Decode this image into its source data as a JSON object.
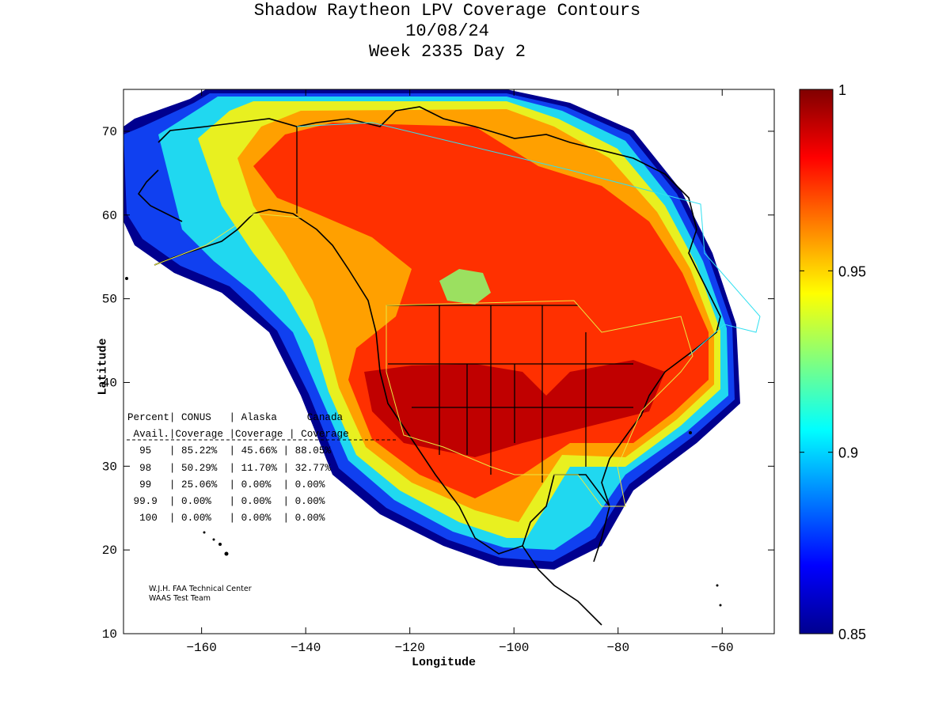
{
  "title": {
    "line1": "Shadow Raytheon LPV Coverage Contours",
    "line2": "10/08/24",
    "line3": "Week 2335 Day 2"
  },
  "axes": {
    "xlabel": "Longitude",
    "ylabel": "Latitude",
    "xlim": [
      -175,
      -50
    ],
    "ylim": [
      10,
      75
    ],
    "xticks": [
      -160,
      -140,
      -120,
      -100,
      -80,
      -60
    ],
    "yticks": [
      10,
      20,
      30,
      40,
      50,
      60,
      70
    ]
  },
  "colorbar": {
    "min": 0.85,
    "max": 1,
    "ticks": [
      "0.85",
      "0.9",
      "0.95",
      "1"
    ],
    "colormap": "jet"
  },
  "stats_table": {
    "header1": [
      "Percent",
      "CONUS",
      "Alaska",
      "Canada"
    ],
    "header2": [
      "Avail.",
      "Coverage",
      "Coverage",
      "Coverage"
    ],
    "rows": [
      [
        "95",
        "85.22%",
        "45.66%",
        "88.05%"
      ],
      [
        "98",
        "50.29%",
        "11.70%",
        "32.77%"
      ],
      [
        "99",
        "25.06%",
        "0.00%",
        "0.00%"
      ],
      [
        "99.9",
        "0.00%",
        "0.00%",
        "0.00%"
      ],
      [
        "100",
        "0.00%",
        "0.00%",
        "0.00%"
      ]
    ]
  },
  "credits": {
    "line1": "W.J.H. FAA Technical Center",
    "line2": "WAAS Test Team"
  }
}
